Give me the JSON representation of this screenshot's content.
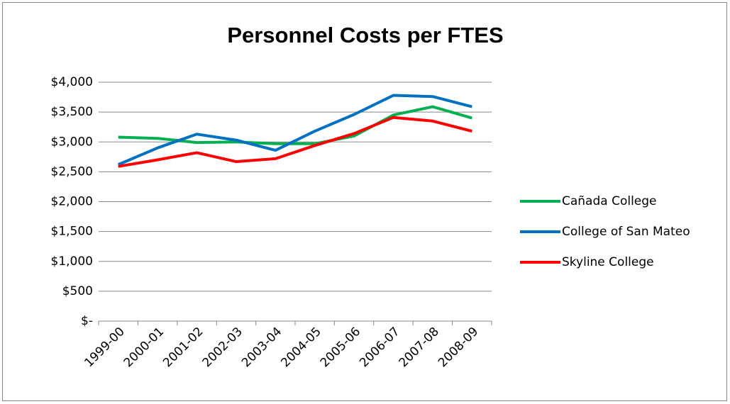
{
  "chart_data": {
    "type": "line",
    "title": "Personnel Costs per FTES",
    "categories": [
      "1999-00",
      "2000-01",
      "2001-02",
      "2002-03",
      "2003-04",
      "2004-05",
      "2005-06",
      "2006-07",
      "2007-08",
      "2008-09"
    ],
    "series": [
      {
        "name": "Cañada College",
        "color": "#00b050",
        "values": [
          3080,
          3060,
          2990,
          3000,
          2970,
          2970,
          3100,
          3450,
          3590,
          3400
        ]
      },
      {
        "name": "College of San Mateo",
        "color": "#0070c0",
        "values": [
          2620,
          2900,
          3130,
          3030,
          2860,
          3180,
          3460,
          3780,
          3760,
          3590
        ]
      },
      {
        "name": "Skyline College",
        "color": "#ff0000",
        "values": [
          2590,
          2700,
          2820,
          2670,
          2720,
          2940,
          3140,
          3410,
          3350,
          3180
        ]
      }
    ],
    "ylim": [
      0,
      4000
    ],
    "yticks": [
      {
        "value": 0,
        "label": "$-"
      },
      {
        "value": 500,
        "label": "$500"
      },
      {
        "value": 1000,
        "label": "$1,000"
      },
      {
        "value": 1500,
        "label": "$1,500"
      },
      {
        "value": 2000,
        "label": "$2,000"
      },
      {
        "value": 2500,
        "label": "$2,500"
      },
      {
        "value": 3000,
        "label": "$3,000"
      },
      {
        "value": 3500,
        "label": "$3,500"
      },
      {
        "value": 4000,
        "label": "$4,000"
      }
    ],
    "grid": true,
    "legend": "right"
  }
}
